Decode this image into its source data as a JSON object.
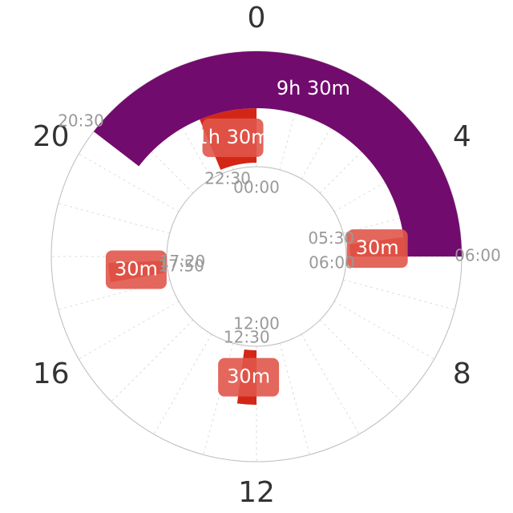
{
  "chart_data": {
    "type": "clock",
    "xlim": [
      0,
      24
    ],
    "xticks": [
      0,
      4,
      8,
      12,
      16,
      20
    ],
    "grid": true,
    "segments": [
      {
        "start": {
          "value": 20.5,
          "label": "20:30"
        },
        "end": {
          "value": 6,
          "label": "06:00"
        },
        "duration": "9h 30m",
        "color": "#720b6e",
        "band": "outer"
      },
      {
        "start": {
          "value": 22.5,
          "label": "22:30"
        },
        "end": {
          "value": 0,
          "label": "00:00"
        },
        "duration": "1h 30m",
        "color": "#d42616",
        "band": "inner"
      },
      {
        "start": {
          "value": 5.5,
          "label": "05:30"
        },
        "end": {
          "value": 6,
          "label": "06:00"
        },
        "duration": "30m",
        "color": "#d42616",
        "band": "inner"
      },
      {
        "start": {
          "value": 12,
          "label": "12:00"
        },
        "end": {
          "value": 12.5,
          "label": "12:30"
        },
        "duration": "30m",
        "color": "#d42616",
        "band": "inner"
      },
      {
        "start": {
          "value": 17.333,
          "label": "17:20"
        },
        "end": {
          "value": 17.833,
          "label": "17:50"
        },
        "duration": "30m",
        "color": "#d42616",
        "band": "inner"
      }
    ]
  }
}
